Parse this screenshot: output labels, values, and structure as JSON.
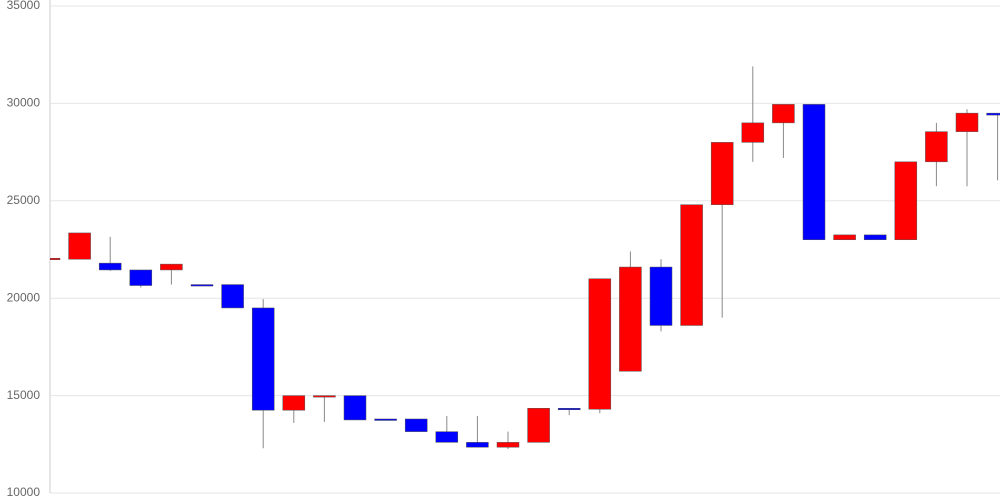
{
  "chart_data": {
    "type": "candlestick",
    "categories": [
      null,
      null,
      null,
      null,
      null,
      null,
      null,
      null,
      null,
      null,
      null,
      null,
      null,
      null,
      null,
      null,
      null,
      null,
      null,
      null,
      null,
      null,
      null,
      null,
      null,
      null,
      null,
      null,
      null,
      null,
      null,
      null
    ],
    "open": [
      22000,
      22000,
      21800,
      21450,
      21450,
      20700,
      20700,
      19500,
      14250,
      15000,
      15000,
      13800,
      13800,
      13150,
      12600,
      12350,
      12600,
      14350,
      14300,
      16250,
      21600,
      18600,
      24800,
      28000,
      29000,
      29950,
      23000,
      23250,
      23000,
      27000,
      28550,
      29500
    ],
    "high": [
      22100,
      23350,
      23150,
      21450,
      21750,
      20700,
      20700,
      19950,
      15000,
      15000,
      15000,
      13800,
      13800,
      13950,
      13950,
      13150,
      14350,
      14350,
      21000,
      22400,
      22000,
      24800,
      28000,
      31900,
      29950,
      29950,
      23250,
      23250,
      27000,
      29000,
      29700,
      29500
    ],
    "low": [
      21100,
      22000,
      21400,
      20550,
      20700,
      20650,
      19500,
      12300,
      13600,
      13650,
      13750,
      13750,
      13150,
      12600,
      12350,
      12250,
      12600,
      14000,
      14100,
      16250,
      18300,
      18600,
      19000,
      27000,
      27200,
      23000,
      23000,
      23000,
      23000,
      25750,
      25750,
      26050
    ],
    "close": [
      22050,
      23350,
      21450,
      20650,
      21750,
      20650,
      19500,
      14250,
      15000,
      15000,
      13750,
      13750,
      13150,
      12600,
      12350,
      12600,
      14350,
      14300,
      21000,
      21600,
      18600,
      24800,
      28000,
      29000,
      29950,
      23000,
      23250,
      23000,
      27000,
      28550,
      29500,
      29400
    ],
    "up_color": "#ff0000",
    "down_color": "#0000ff",
    "ylim": [
      10000,
      35000
    ],
    "yticks": [
      10000,
      15000,
      20000,
      25000,
      30000,
      35000
    ],
    "grid": true
  }
}
